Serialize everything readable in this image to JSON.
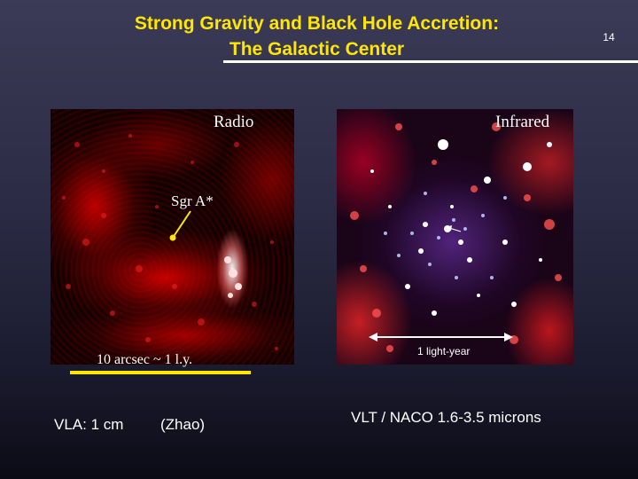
{
  "slide": {
    "title_line1": "Strong Gravity and Black Hole Accretion:",
    "title_line2": "The Galactic Center",
    "number": "14"
  },
  "radio_panel": {
    "label": "Radio",
    "source_label": "Sgr A*",
    "scale_text": "10 arcsec ~ 1 l.y."
  },
  "infrared_panel": {
    "label": "Infrared",
    "scale_text": "1 light-year"
  },
  "captions": {
    "vla": "VLA: 1 cm",
    "zhao": "(Zhao)",
    "vlt": "VLT / NACO  1.6-3.5 microns"
  },
  "colors": {
    "title": "#ffe600",
    "background_top": "#3b3b57",
    "background_bottom": "#0b0b16",
    "scalebar": "#ffe600"
  }
}
